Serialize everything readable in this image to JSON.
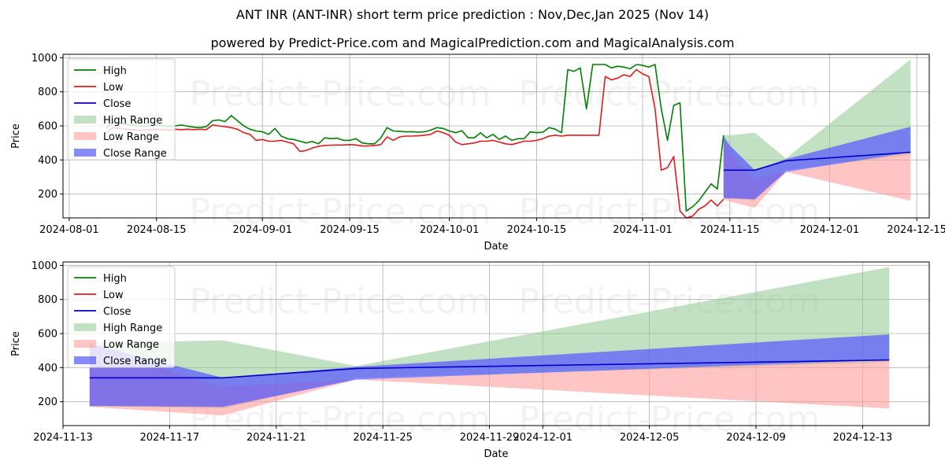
{
  "titles": {
    "main": "ANT INR (ANT-INR) short term price prediction : Nov,Dec,Jan 2025 (Nov 14)",
    "sub": "powered by Predict-Price.com and MagicalPrediction.com and MagicalAnalysis.com"
  },
  "watermark": "Predict-Price.com",
  "colors": {
    "high": "#008000",
    "low": "#e41a1c",
    "close": "#0000cc",
    "high_range": "#8fc98f",
    "low_range": "#ff9e9e",
    "close_range": "#5555ff"
  },
  "chart_data": [
    {
      "type": "line",
      "id": "top",
      "xlabel": "Date",
      "ylabel": "Price",
      "xlim": [
        "2024-07-31",
        "2024-12-17"
      ],
      "ylim": [
        60,
        1020
      ],
      "xticks": [
        "2024-08-01",
        "2024-08-15",
        "2024-09-01",
        "2024-09-15",
        "2024-10-01",
        "2024-10-15",
        "2024-11-01",
        "2024-11-15",
        "2024-12-01",
        "2024-12-15"
      ],
      "yticks": [
        200,
        400,
        600,
        800,
        1000
      ],
      "legend": [
        "High",
        "Low",
        "Close",
        "High Range",
        "Low Range",
        "Close Range"
      ],
      "legend_position": "upper-left",
      "grid": true,
      "series": [
        {
          "name": "High",
          "x": [
            "2024-08-07",
            "2024-08-08",
            "2024-08-09",
            "2024-08-10",
            "2024-08-11",
            "2024-08-12",
            "2024-08-13",
            "2024-08-14",
            "2024-08-15",
            "2024-08-16",
            "2024-08-17",
            "2024-08-18",
            "2024-08-19",
            "2024-08-20",
            "2024-08-21",
            "2024-08-22",
            "2024-08-23",
            "2024-08-24",
            "2024-08-25",
            "2024-08-26",
            "2024-08-27",
            "2024-08-28",
            "2024-08-29",
            "2024-08-30",
            "2024-08-31",
            "2024-09-01",
            "2024-09-02",
            "2024-09-03",
            "2024-09-04",
            "2024-09-05",
            "2024-09-06",
            "2024-09-07",
            "2024-09-08",
            "2024-09-09",
            "2024-09-10",
            "2024-09-11",
            "2024-09-12",
            "2024-09-13",
            "2024-09-14",
            "2024-09-15",
            "2024-09-16",
            "2024-09-17",
            "2024-09-18",
            "2024-09-19",
            "2024-09-20",
            "2024-09-21",
            "2024-09-22",
            "2024-09-23",
            "2024-09-24",
            "2024-09-25",
            "2024-09-26",
            "2024-09-27",
            "2024-09-28",
            "2024-09-29",
            "2024-09-30",
            "2024-10-01",
            "2024-10-02",
            "2024-10-03",
            "2024-10-04",
            "2024-10-05",
            "2024-10-06",
            "2024-10-07",
            "2024-10-08",
            "2024-10-09",
            "2024-10-10",
            "2024-10-11",
            "2024-10-12",
            "2024-10-13",
            "2024-10-14",
            "2024-10-15",
            "2024-10-16",
            "2024-10-17",
            "2024-10-18",
            "2024-10-19",
            "2024-10-20",
            "2024-10-21",
            "2024-10-22",
            "2024-10-23",
            "2024-10-24",
            "2024-10-25",
            "2024-10-26",
            "2024-10-27",
            "2024-10-28",
            "2024-10-29",
            "2024-10-30",
            "2024-10-31",
            "2024-11-01",
            "2024-11-02",
            "2024-11-03",
            "2024-11-04",
            "2024-11-05",
            "2024-11-06",
            "2024-11-07",
            "2024-11-08",
            "2024-11-09",
            "2024-11-10",
            "2024-11-11",
            "2024-11-12",
            "2024-11-13",
            "2024-11-14"
          ],
          "values": [
            590,
            620,
            615,
            610,
            605,
            600,
            598,
            600,
            605,
            600,
            598,
            600,
            605,
            598,
            592,
            590,
            595,
            630,
            635,
            625,
            660,
            630,
            600,
            580,
            570,
            565,
            550,
            585,
            540,
            525,
            520,
            510,
            500,
            508,
            495,
            530,
            525,
            528,
            515,
            515,
            525,
            500,
            495,
            495,
            530,
            590,
            570,
            568,
            565,
            566,
            563,
            565,
            575,
            590,
            585,
            570,
            560,
            572,
            530,
            530,
            560,
            530,
            550,
            520,
            540,
            515,
            525,
            525,
            565,
            560,
            563,
            590,
            580,
            560,
            930,
            920,
            940,
            700,
            960,
            960,
            960,
            940,
            950,
            945,
            935,
            960,
            955,
            945,
            960,
            700,
            515,
            720,
            735,
            100,
            125,
            160,
            210,
            260,
            230,
            545
          ]
        },
        {
          "name": "Low",
          "x": [
            "2024-08-07",
            "2024-08-08",
            "2024-08-09",
            "2024-08-10",
            "2024-08-11",
            "2024-08-12",
            "2024-08-13",
            "2024-08-14",
            "2024-08-15",
            "2024-08-16",
            "2024-08-17",
            "2024-08-18",
            "2024-08-19",
            "2024-08-20",
            "2024-08-21",
            "2024-08-22",
            "2024-08-23",
            "2024-08-24",
            "2024-08-25",
            "2024-08-26",
            "2024-08-27",
            "2024-08-28",
            "2024-08-29",
            "2024-08-30",
            "2024-08-31",
            "2024-09-01",
            "2024-09-02",
            "2024-09-03",
            "2024-09-04",
            "2024-09-05",
            "2024-09-06",
            "2024-09-07",
            "2024-09-08",
            "2024-09-09",
            "2024-09-10",
            "2024-09-11",
            "2024-09-12",
            "2024-09-13",
            "2024-09-14",
            "2024-09-15",
            "2024-09-16",
            "2024-09-17",
            "2024-09-18",
            "2024-09-19",
            "2024-09-20",
            "2024-09-21",
            "2024-09-22",
            "2024-09-23",
            "2024-09-24",
            "2024-09-25",
            "2024-09-26",
            "2024-09-27",
            "2024-09-28",
            "2024-09-29",
            "2024-09-30",
            "2024-10-01",
            "2024-10-02",
            "2024-10-03",
            "2024-10-04",
            "2024-10-05",
            "2024-10-06",
            "2024-10-07",
            "2024-10-08",
            "2024-10-09",
            "2024-10-10",
            "2024-10-11",
            "2024-10-12",
            "2024-10-13",
            "2024-10-14",
            "2024-10-15",
            "2024-10-16",
            "2024-10-17",
            "2024-10-18",
            "2024-10-19",
            "2024-10-20",
            "2024-10-21",
            "2024-10-22",
            "2024-10-23",
            "2024-10-24",
            "2024-10-25",
            "2024-10-26",
            "2024-10-27",
            "2024-10-28",
            "2024-10-29",
            "2024-10-30",
            "2024-10-31",
            "2024-11-01",
            "2024-11-02",
            "2024-11-03",
            "2024-11-04",
            "2024-11-05",
            "2024-11-06",
            "2024-11-07",
            "2024-11-08",
            "2024-11-09",
            "2024-11-10",
            "2024-11-11",
            "2024-11-12",
            "2024-11-13",
            "2024-11-14"
          ],
          "values": [
            560,
            590,
            585,
            580,
            578,
            575,
            575,
            578,
            580,
            578,
            575,
            580,
            578,
            580,
            578,
            580,
            578,
            605,
            600,
            595,
            590,
            580,
            560,
            550,
            515,
            520,
            510,
            510,
            515,
            505,
            495,
            450,
            455,
            470,
            480,
            485,
            487,
            488,
            488,
            490,
            488,
            482,
            482,
            485,
            490,
            535,
            515,
            535,
            540,
            540,
            542,
            545,
            550,
            570,
            560,
            545,
            505,
            490,
            495,
            500,
            510,
            510,
            515,
            505,
            495,
            490,
            500,
            510,
            510,
            515,
            525,
            540,
            545,
            540,
            545,
            545,
            545,
            545,
            545,
            545,
            890,
            870,
            880,
            900,
            890,
            930,
            905,
            890,
            700,
            340,
            355,
            420,
            100,
            60,
            70,
            110,
            130,
            165,
            130,
            170
          ]
        },
        {
          "name": "Close",
          "x": [
            "2024-11-14",
            "2024-11-15",
            "2024-11-19",
            "2024-11-24",
            "2024-12-14"
          ],
          "values": [
            340,
            340,
            340,
            395,
            445
          ]
        }
      ],
      "ranges": [
        {
          "name": "High Range",
          "x": [
            "2024-11-14",
            "2024-11-15",
            "2024-11-19",
            "2024-11-24",
            "2024-12-14"
          ],
          "upper": [
            545,
            545,
            560,
            410,
            990
          ],
          "lower": [
            175,
            175,
            160,
            340,
            430
          ]
        },
        {
          "name": "Low Range",
          "x": [
            "2024-11-14",
            "2024-11-15",
            "2024-11-19",
            "2024-11-24",
            "2024-12-14"
          ],
          "upper": [
            520,
            440,
            290,
            330,
            445
          ],
          "lower": [
            170,
            155,
            120,
            330,
            160
          ]
        },
        {
          "name": "Close Range",
          "x": [
            "2024-11-14",
            "2024-11-15",
            "2024-11-19",
            "2024-11-24",
            "2024-12-14"
          ],
          "upper": [
            540,
            485,
            340,
            405,
            595
          ],
          "lower": [
            175,
            175,
            170,
            330,
            445
          ]
        }
      ]
    },
    {
      "type": "line",
      "id": "bottom",
      "xlabel": "Date",
      "ylabel": "Price",
      "xlim": [
        "2024-11-13T00:00",
        "2024-12-15T12:00"
      ],
      "ylim": [
        60,
        1020
      ],
      "xticks": [
        "2024-11-13",
        "2024-11-17",
        "2024-11-21",
        "2024-11-25",
        "2024-11-29",
        "2024-12-01",
        "2024-12-05",
        "2024-12-09",
        "2024-12-13"
      ],
      "yticks": [
        200,
        400,
        600,
        800,
        1000
      ],
      "legend": [
        "High",
        "Low",
        "Close",
        "High Range",
        "Low Range",
        "Close Range"
      ],
      "legend_position": "upper-left",
      "grid": true,
      "series": [
        {
          "name": "Close",
          "x": [
            "2024-11-14",
            "2024-11-19",
            "2024-11-24",
            "2024-12-14"
          ],
          "values": [
            340,
            340,
            395,
            445
          ]
        }
      ],
      "ranges": [
        {
          "name": "High Range",
          "x": [
            "2024-11-14",
            "2024-11-19",
            "2024-11-24",
            "2024-12-14"
          ],
          "upper": [
            545,
            560,
            410,
            990
          ],
          "lower": [
            175,
            160,
            340,
            430
          ]
        },
        {
          "name": "Low Range",
          "x": [
            "2024-11-14",
            "2024-11-19",
            "2024-11-24",
            "2024-12-14"
          ],
          "upper": [
            520,
            290,
            330,
            445
          ],
          "lower": [
            170,
            120,
            330,
            160
          ]
        },
        {
          "name": "Close Range",
          "x": [
            "2024-11-14",
            "2024-11-19",
            "2024-11-24",
            "2024-12-14"
          ],
          "upper": [
            540,
            340,
            405,
            595
          ],
          "lower": [
            175,
            170,
            330,
            445
          ]
        }
      ]
    }
  ]
}
